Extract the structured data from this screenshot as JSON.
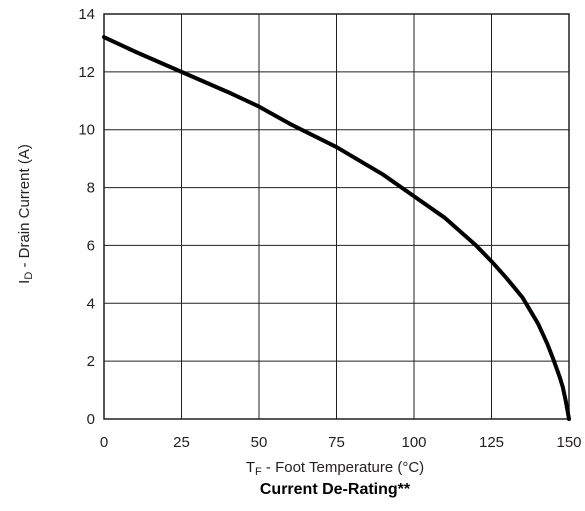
{
  "chart_data": {
    "type": "line",
    "title": "Current De-Rating**",
    "xlabel": {
      "main": "T",
      "sub": "F",
      "rest": " - Foot Temperature (°C)"
    },
    "ylabel": {
      "main": "I",
      "sub": "D",
      "rest": " - Drain Current (A)"
    },
    "xlim": [
      0,
      150
    ],
    "ylim": [
      0,
      14
    ],
    "xticks": [
      0,
      25,
      50,
      75,
      100,
      125,
      150
    ],
    "yticks": [
      0,
      2,
      4,
      6,
      8,
      10,
      12,
      14
    ],
    "grid": true,
    "series": [
      {
        "color": "#000000",
        "x": [
          0,
          10,
          25,
          40,
          50,
          60,
          75,
          90,
          100,
          110,
          120,
          125,
          130,
          135,
          140,
          143,
          145,
          147,
          148,
          149,
          150
        ],
        "y": [
          13.2,
          12.7,
          12.0,
          11.3,
          10.8,
          10.2,
          9.4,
          8.45,
          7.7,
          6.95,
          6.0,
          5.45,
          4.85,
          4.2,
          3.3,
          2.6,
          2.05,
          1.45,
          1.1,
          0.6,
          0
        ]
      }
    ]
  }
}
